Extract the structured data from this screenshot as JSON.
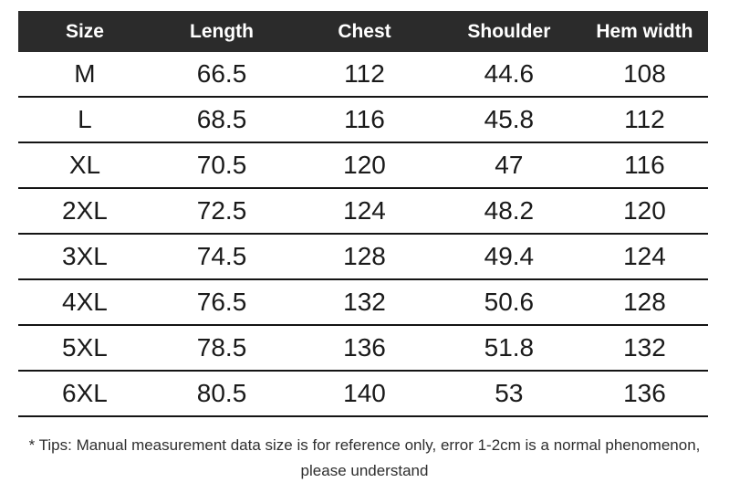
{
  "table": {
    "columns": [
      "Size",
      "Length",
      "Chest",
      "Shoulder",
      "Hem width"
    ],
    "rows": [
      {
        "size": "M",
        "length": "66.5",
        "chest": "112",
        "shoulder": "44.6",
        "hem_width": "108"
      },
      {
        "size": "L",
        "length": "68.5",
        "chest": "116",
        "shoulder": "45.8",
        "hem_width": "112"
      },
      {
        "size": "XL",
        "length": "70.5",
        "chest": "120",
        "shoulder": "47",
        "hem_width": "116"
      },
      {
        "size": "2XL",
        "length": "72.5",
        "chest": "124",
        "shoulder": "48.2",
        "hem_width": "120"
      },
      {
        "size": "3XL",
        "length": "74.5",
        "chest": "128",
        "shoulder": "49.4",
        "hem_width": "124"
      },
      {
        "size": "4XL",
        "length": "76.5",
        "chest": "132",
        "shoulder": "50.6",
        "hem_width": "128"
      },
      {
        "size": "5XL",
        "length": "78.5",
        "chest": "136",
        "shoulder": "51.8",
        "hem_width": "132"
      },
      {
        "size": "6XL",
        "length": "80.5",
        "chest": "140",
        "shoulder": "53",
        "hem_width": "136"
      }
    ]
  },
  "footnote": {
    "line1": "* Tips: Manual measurement data size is for reference only, error 1-2cm is a normal phenomenon,",
    "line2": "please understand"
  },
  "colors": {
    "header_bg": "#2b2b2b",
    "header_text": "#ffffff",
    "row_text": "#1a1a1a",
    "divider": "#141414",
    "note_text": "#2e2e2e",
    "background": "#ffffff"
  }
}
